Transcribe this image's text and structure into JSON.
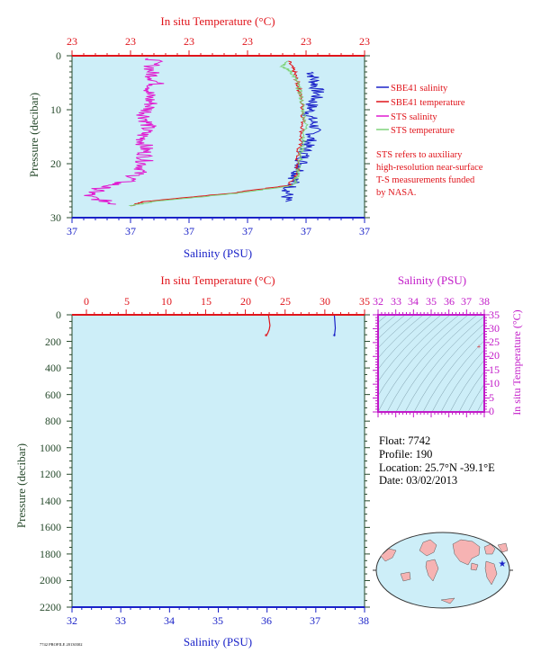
{
  "colors": {
    "plot_bg": "#cdeef8",
    "red": "#e0141b",
    "blue": "#1a22c8",
    "magenta": "#e01ad0",
    "green": "#7fd37a",
    "axis_dark": "#274a2c",
    "purple": "#c21ac8"
  },
  "top_chart": {
    "title_top": "In situ Temperature (°C)",
    "top_ticks": [
      "23",
      "23",
      "23",
      "23",
      "23",
      "23"
    ],
    "bottom_ticks": [
      "37",
      "37",
      "37",
      "37",
      "37",
      "37"
    ],
    "left_ticks": [
      "0",
      "10",
      "20",
      "30"
    ],
    "ylabel": "Pressure (decibar)",
    "xlabel": "Salinity (PSU)",
    "legend": [
      {
        "label": "SBE41 salinity",
        "color": "#1a22c8"
      },
      {
        "label": "SBE41 temperature",
        "color": "#e0141b"
      },
      {
        "label": "STS salinity",
        "color": "#e01ad0"
      },
      {
        "label": "STS temperature",
        "color": "#7fd37a"
      }
    ],
    "note": [
      "STS refers to auxiliary",
      "high-resolution near-surface",
      "T-S measurements funded",
      "by NASA."
    ]
  },
  "bottom_chart": {
    "title_top": "In situ Temperature (°C)",
    "top_ticks": [
      "0",
      "5",
      "10",
      "15",
      "20",
      "25",
      "30",
      "35"
    ],
    "bottom_ticks": [
      "32",
      "33",
      "34",
      "35",
      "36",
      "37",
      "38"
    ],
    "left_ticks": [
      "0",
      "200",
      "400",
      "600",
      "800",
      "1000",
      "1200",
      "1400",
      "1600",
      "1800",
      "2000",
      "2200"
    ],
    "ylabel": "Pressure (decibar)",
    "xlabel": "Salinity (PSU)"
  },
  "ts_diagram": {
    "title": "Salinity (PSU)",
    "top_ticks": [
      "32",
      "33",
      "34",
      "35",
      "36",
      "37",
      "38"
    ],
    "right_ticks": [
      "35",
      "30",
      "25",
      "20",
      "15",
      "10",
      "5",
      "0"
    ],
    "ylabel": "In situ Temperature (°C)"
  },
  "float_info": {
    "float": "Float:  7742",
    "profile": "Profile:  190",
    "location": "Location:  25.7°N  -39.1°E",
    "date": "Date:  03/02/2013"
  },
  "footer_text": "7742 PROFILE 20130302",
  "chart_data": [
    {
      "type": "line",
      "title": "In situ Temperature (°C)",
      "xlabel": "Salinity (PSU)",
      "ylabel": "Pressure (decibar)",
      "ylim": [
        30,
        0
      ],
      "grid": false,
      "legend_position": "right",
      "series": [
        {
          "name": "SBE41 salinity",
          "color": "#1a22c8",
          "x": [
            0.82,
            0.83,
            0.84,
            0.82,
            0.81,
            0.83,
            0.82,
            0.8,
            0.79,
            0.78,
            0.76,
            0.74,
            0.73
          ],
          "y": [
            3,
            5,
            7,
            9,
            11,
            13,
            15,
            17,
            19,
            21,
            23,
            25,
            27
          ]
        },
        {
          "name": "SBE41 temperature",
          "color": "#e0141b",
          "x": [
            0.74,
            0.76,
            0.77,
            0.78,
            0.79,
            0.79,
            0.78,
            0.77,
            0.77,
            0.74,
            0.54,
            0.25,
            0.2
          ],
          "y": [
            1,
            3,
            5,
            7,
            10,
            13,
            16,
            19,
            22,
            24,
            25.5,
            27,
            27.8
          ]
        },
        {
          "name": "STS salinity",
          "color": "#e01ad0",
          "x": [
            0.28,
            0.27,
            0.29,
            0.26,
            0.27,
            0.25,
            0.26,
            0.24,
            0.25,
            0.25,
            0.24,
            0.2,
            0.1,
            0.05,
            0.15
          ],
          "y": [
            0.5,
            3,
            5,
            7,
            9,
            11,
            13,
            15,
            17,
            19,
            21,
            23,
            24.5,
            26,
            27.5
          ]
        },
        {
          "name": "STS temperature",
          "color": "#7fd37a",
          "x": [
            0.74,
            0.72,
            0.75,
            0.77,
            0.78,
            0.79,
            0.8,
            0.79,
            0.78,
            0.77,
            0.76,
            0.56,
            0.28,
            0.2
          ],
          "y": [
            1,
            2,
            3,
            5,
            7,
            10,
            13,
            16,
            19,
            22,
            24,
            25.5,
            27,
            27.8
          ]
        }
      ]
    },
    {
      "type": "line",
      "title": "In situ Temperature (°C)",
      "xlabel": "Salinity (PSU)",
      "ylabel": "Pressure (decibar)",
      "xlim": [
        32,
        38
      ],
      "ylim": [
        2200,
        0
      ],
      "grid": false,
      "series": [
        {
          "name": "temperature",
          "color": "#e0141b",
          "temp_x": [
            22.9,
            23.0,
            23.1,
            23.0,
            22.8,
            22.6
          ],
          "y": [
            0,
            40,
            80,
            110,
            140,
            160
          ]
        },
        {
          "name": "salinity",
          "color": "#1a22c8",
          "x": [
            37.38,
            37.39,
            37.4,
            37.39,
            37.38
          ],
          "y": [
            0,
            50,
            100,
            130,
            160
          ]
        }
      ]
    },
    {
      "type": "scatter",
      "title": "Salinity (PSU)",
      "xlim": [
        32,
        38
      ],
      "ylim": [
        0,
        35
      ],
      "ylabel": "In situ Temperature (°C)",
      "series": [
        {
          "name": "profile",
          "color": "#e0141b",
          "x": [
            37.4
          ],
          "y": [
            22.9
          ]
        }
      ]
    }
  ]
}
